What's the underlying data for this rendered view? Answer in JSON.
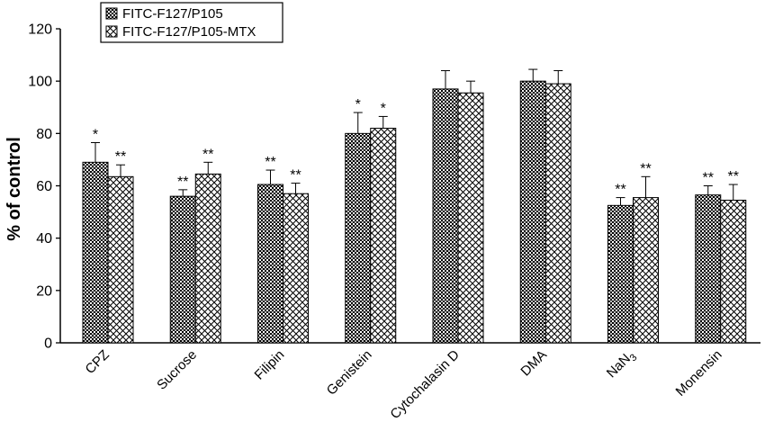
{
  "chart_data": {
    "type": "bar",
    "title": "",
    "xlabel": "",
    "ylabel": "% of control",
    "ylim": [
      0,
      120
    ],
    "yticks": [
      0,
      20,
      40,
      60,
      80,
      100,
      120
    ],
    "grid": false,
    "legend_position": "top-left",
    "categories": [
      "CPZ",
      "Sucrose",
      "Filipin",
      "Genistein",
      "Cytochalasin D",
      "DMA",
      "NaN3",
      "Monensin"
    ],
    "series": [
      {
        "name": "FITC-F127/P105",
        "pattern": "dense-checker",
        "values": [
          69,
          56,
          60.5,
          80,
          97,
          100,
          52.5,
          56.5
        ],
        "errors": [
          7.5,
          2.5,
          5.5,
          8,
          7,
          4.5,
          3,
          3.5
        ],
        "significance": [
          "*",
          "**",
          "**",
          "*",
          "",
          "",
          "**",
          "**"
        ]
      },
      {
        "name": "FITC-F127/P105-MTX",
        "pattern": "open-crosshatch",
        "values": [
          63.5,
          64.5,
          57,
          82,
          95.5,
          99,
          55.5,
          54.5
        ],
        "errors": [
          4.5,
          4.5,
          4,
          4.5,
          4.5,
          5,
          8,
          6
        ],
        "significance": [
          "**",
          "**",
          "**",
          "*",
          "",
          "",
          "**",
          "**"
        ]
      }
    ]
  },
  "colors": {
    "bar_fill_dark": "#000000",
    "bar_fill_light": "#ffffff",
    "axis": "#000000"
  }
}
